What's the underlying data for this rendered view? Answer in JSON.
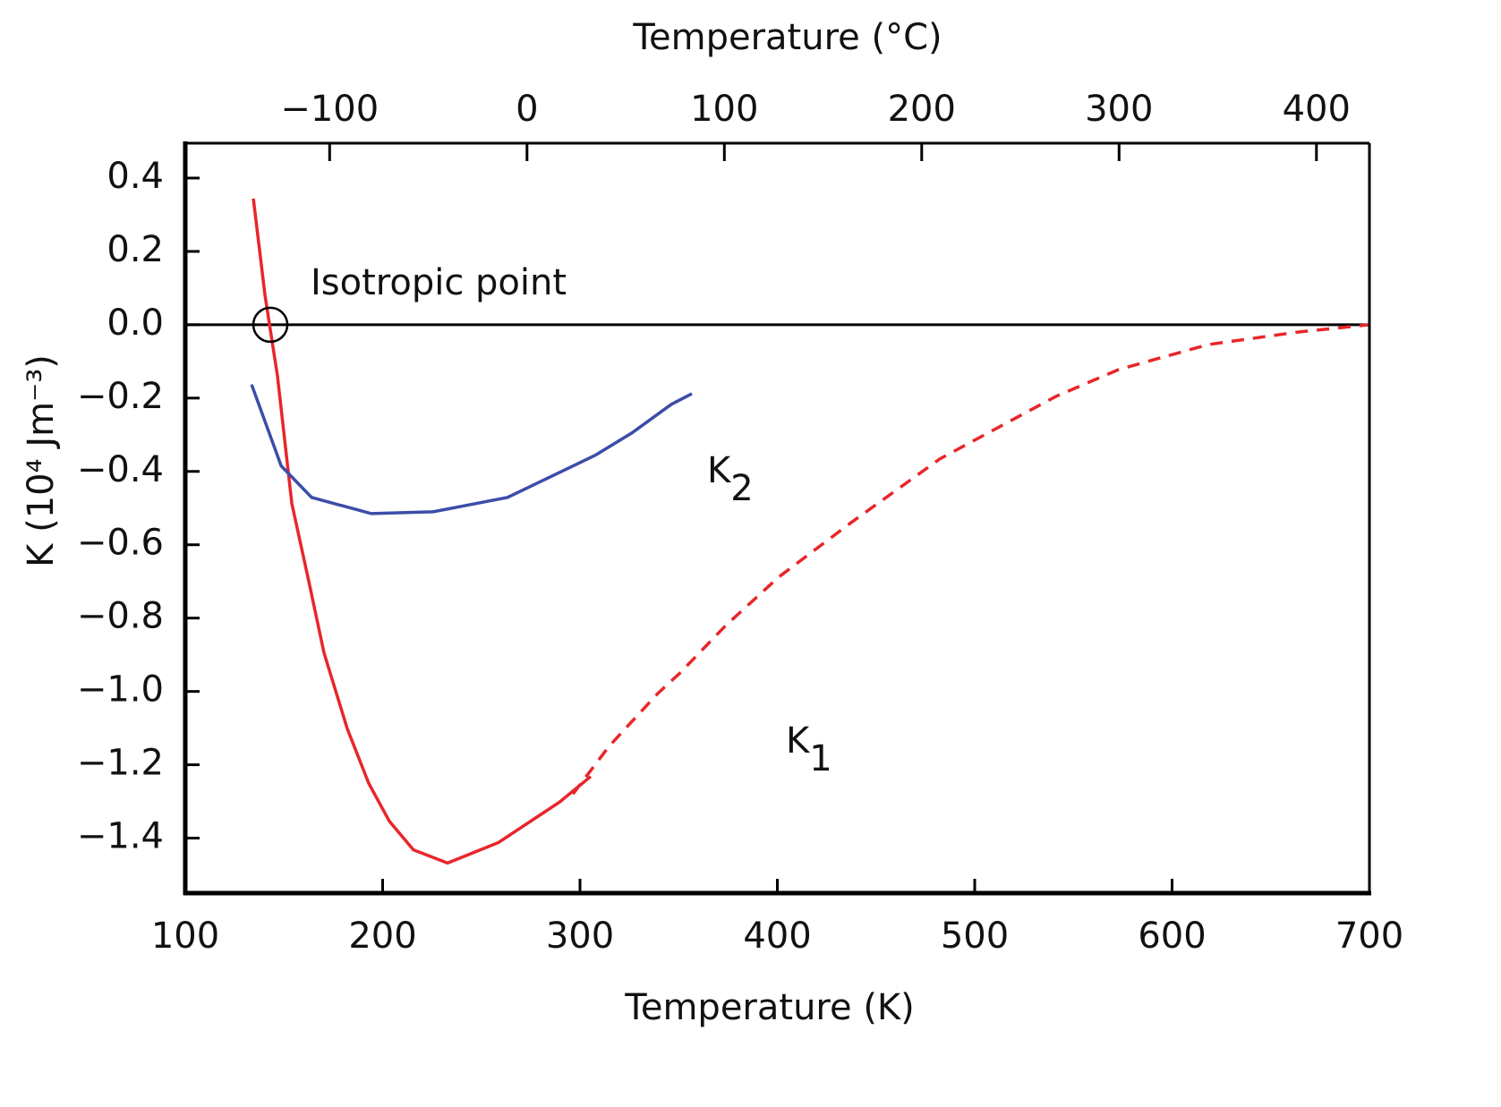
{
  "chart_data": {
    "type": "line",
    "xlabel": "Temperature (K)",
    "x2label": "Temperature (°C)",
    "ylabel": "K (10⁴ Jm⁻³)",
    "xlim": [
      100,
      700
    ],
    "xticks": [
      100,
      200,
      300,
      400,
      500,
      600,
      700
    ],
    "x2lim": [
      -173.15,
      426.85
    ],
    "x2ticks": [
      {
        "value": -100,
        "label": "−100"
      },
      0,
      100,
      200,
      300,
      400
    ],
    "ylim": [
      -1.55,
      0.5
    ],
    "yticks": [
      0.4,
      0.2,
      {
        "value": 0,
        "label": "0.0"
      },
      {
        "value": -0.2,
        "label": "−0.2"
      },
      {
        "value": -0.4,
        "label": "−0.4"
      },
      {
        "value": -0.6,
        "label": "−0.6"
      },
      {
        "value": -0.8,
        "label": "−0.8"
      },
      {
        "value": -1.0,
        "label": "−1.0"
      },
      {
        "value": -1.2,
        "label": "−1.2"
      },
      {
        "value": -1.4,
        "label": "−1.4"
      }
    ],
    "series": [
      {
        "name": "K1",
        "color": "#e8262a",
        "x": [
          134.5,
          140.4,
          146.7,
          154.0,
          162.6,
          170.3,
          182.1,
          193.0,
          203.4,
          215.6,
          232.9,
          258.7,
          289.6,
          305.4
        ],
        "values": [
          0.344,
          0.08,
          -0.139,
          -0.488,
          -0.7,
          -0.895,
          -1.102,
          -1.251,
          -1.354,
          -1.432,
          -1.468,
          -1.412,
          -1.302,
          -1.232
        ]
      },
      {
        "color": "#e8262a",
        "dashed": true,
        "x": [
          296.4,
          314.5,
          339.5,
          350.8,
          373.5,
          400.7,
          437.0,
          482.3,
          541.3,
          573.0,
          618.4,
          663.7,
          700
        ],
        "values": [
          -1.28,
          -1.151,
          -1.005,
          -0.949,
          -0.822,
          -0.688,
          -0.541,
          -0.366,
          -0.195,
          -0.122,
          -0.054,
          -0.02,
          0
        ]
      },
      {
        "name": "K2",
        "color": "#3b4da8",
        "x": [
          133.6,
          148.6,
          164.0,
          194.3,
          225.6,
          263.3,
          307.7,
          326.3,
          346.3,
          356.7
        ],
        "values": [
          -0.163,
          -0.385,
          -0.471,
          -0.515,
          -0.51,
          -0.471,
          -0.356,
          -0.295,
          -0.217,
          -0.188
        ]
      }
    ],
    "isotropic_point": {
      "label": "Isotropic point",
      "x": 143.1,
      "y": 0
    }
  }
}
